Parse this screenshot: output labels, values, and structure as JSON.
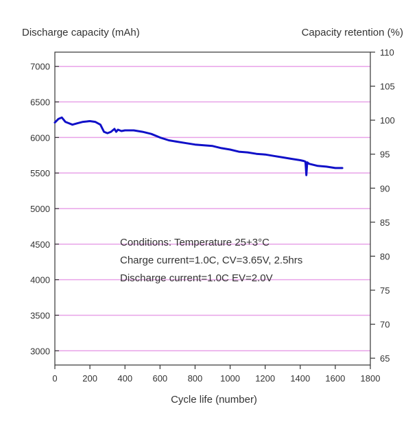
{
  "chart_data": {
    "type": "line",
    "ylabel_left": "Discharge capacity (mAh)",
    "ylabel_right": "Capacity retention (%)",
    "xlabel": "Cycle life (number)",
    "xlim": [
      0,
      1800
    ],
    "ylim_left": [
      2800,
      7200
    ],
    "ylim_right": [
      64,
      110
    ],
    "x_ticks": [
      0,
      200,
      400,
      600,
      800,
      1000,
      1200,
      1400,
      1600,
      1800
    ],
    "y_ticks_left": [
      3000,
      3500,
      4000,
      4500,
      5000,
      5500,
      6000,
      6500,
      7000
    ],
    "y_ticks_right": [
      65,
      70,
      75,
      80,
      85,
      90,
      95,
      100,
      105,
      110
    ],
    "grid": true,
    "colors": {
      "series": "#1010c8",
      "grid": "#e8a2e8",
      "axis": "#333333"
    },
    "annotation": [
      "Conditions: Temperature 25+3°C",
      "Charge current=1.0C, CV=3.65V, 2.5hrs",
      "Discharge current=1.0C EV=2.0V"
    ],
    "series": [
      {
        "x": [
          0,
          20,
          40,
          60,
          80,
          100,
          130,
          160,
          200,
          230,
          260,
          280,
          300,
          320,
          340,
          350,
          360,
          380,
          400,
          450,
          500,
          550,
          600,
          650,
          700,
          750,
          800,
          850,
          900,
          950,
          1000,
          1050,
          1100,
          1150,
          1200,
          1250,
          1300,
          1350,
          1400,
          1420,
          1430,
          1435,
          1440,
          1450,
          1500,
          1550,
          1600,
          1640
        ],
        "y": [
          6210,
          6260,
          6280,
          6220,
          6200,
          6180,
          6200,
          6220,
          6230,
          6220,
          6180,
          6080,
          6060,
          6080,
          6120,
          6080,
          6110,
          6090,
          6100,
          6100,
          6080,
          6050,
          6000,
          5960,
          5940,
          5920,
          5900,
          5890,
          5880,
          5850,
          5830,
          5800,
          5790,
          5770,
          5760,
          5740,
          5720,
          5700,
          5680,
          5670,
          5660,
          5470,
          5650,
          5630,
          5600,
          5590,
          5570,
          5570
        ]
      }
    ]
  }
}
